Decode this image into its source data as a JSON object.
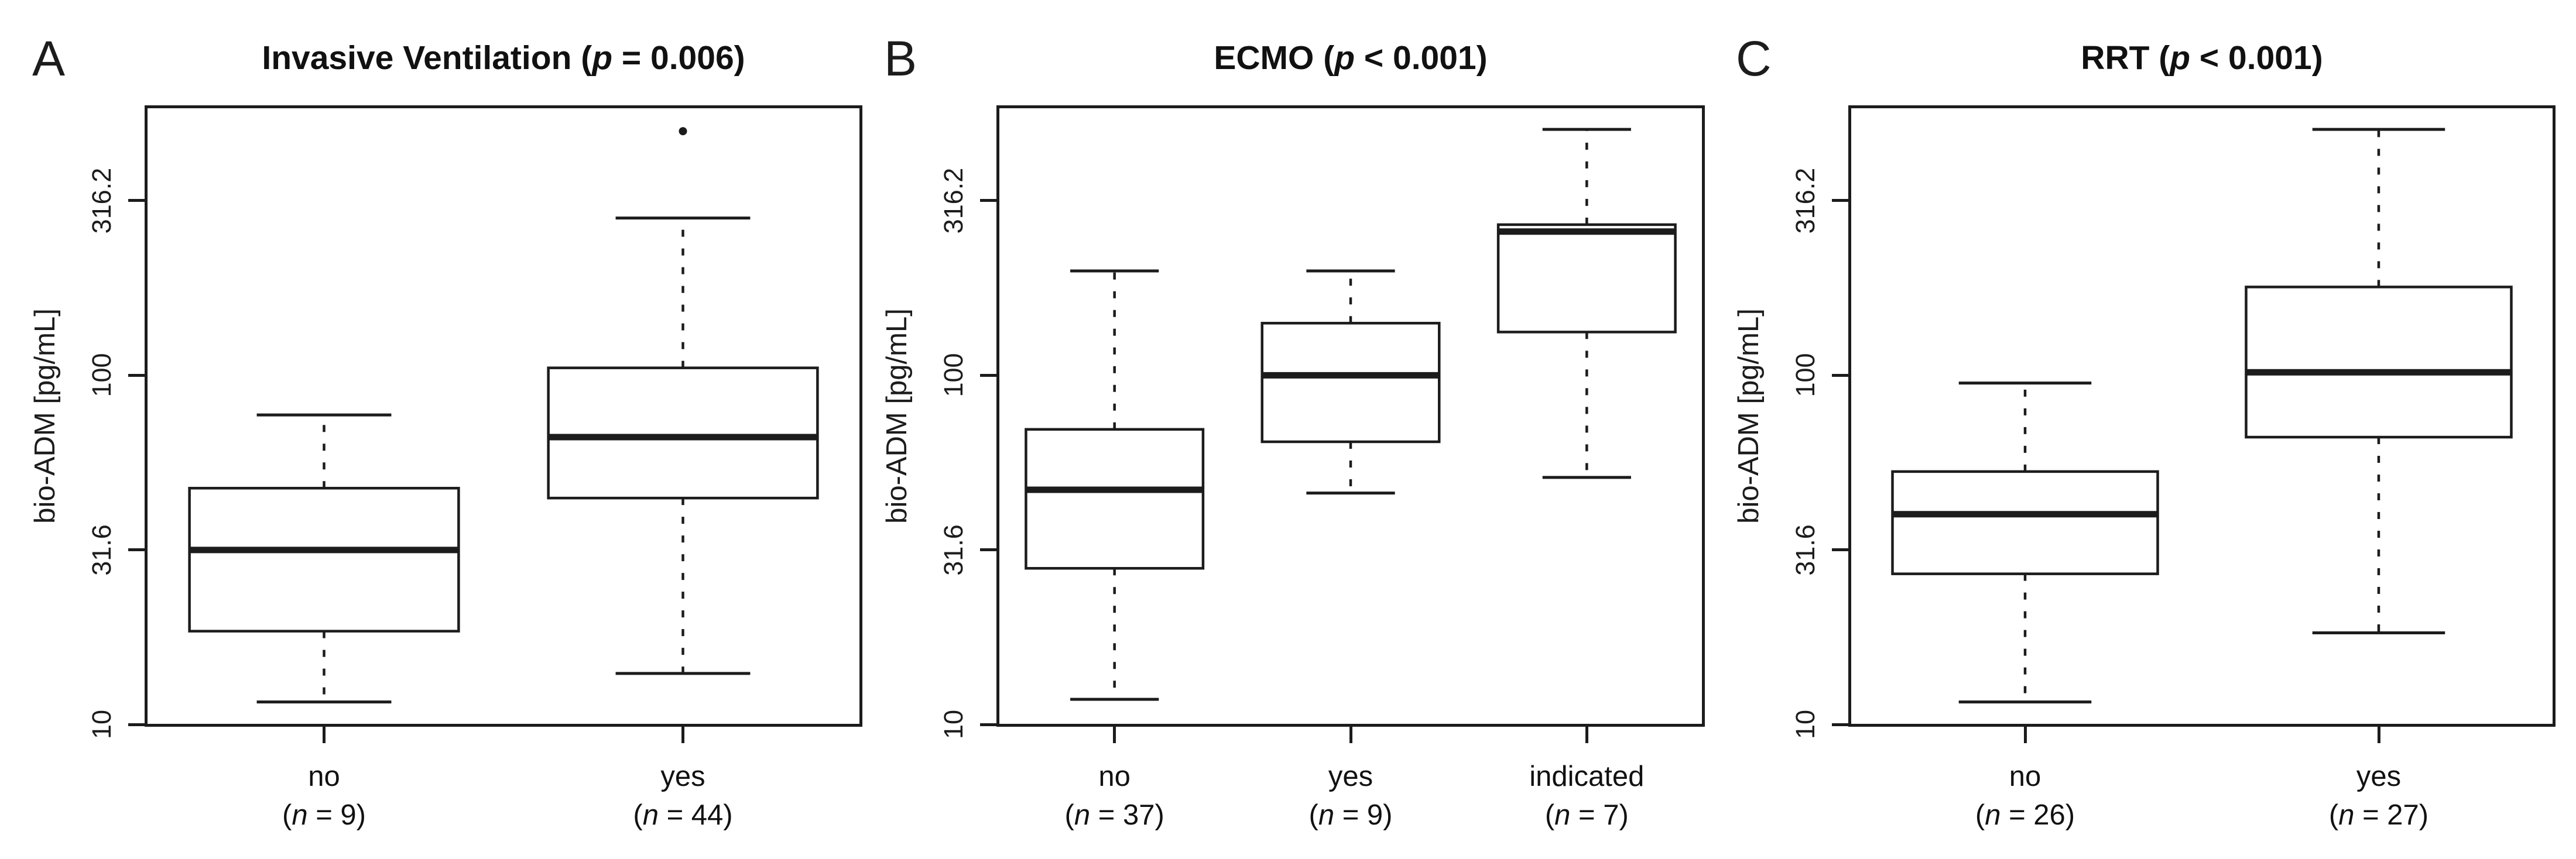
{
  "figure": {
    "background_color": "#ffffff",
    "line_color": "#1c1c1c",
    "ylabel": "bio-ADM [pg/mL]"
  },
  "chart_data": [
    {
      "type": "boxplot",
      "panel_letter": "A",
      "title": "Invasive Ventilation (p = 0.006)",
      "title_prefix": "Invasive Ventilation (",
      "title_p": "p",
      "title_suffix": " = 0.006)",
      "ylabel": "bio-ADM [pg/mL]",
      "y_scale": "log10",
      "ylim": [
        9.85,
        593
      ],
      "grid": false,
      "yticks": [
        {
          "value": 10,
          "label": "10"
        },
        {
          "value": 31.6,
          "label": "31.6"
        },
        {
          "value": 100,
          "label": "100"
        },
        {
          "value": 316.2,
          "label": "316.2"
        }
      ],
      "groups": [
        {
          "category": "no",
          "n": 9,
          "n_label": "(n = 9)",
          "whisker_low": 11.6,
          "q1": 18.5,
          "median": 31.6,
          "q3": 47.5,
          "whisker_high": 77,
          "outliers": []
        },
        {
          "category": "yes",
          "n": 44,
          "n_label": "(n = 44)",
          "whisker_low": 14,
          "q1": 44.5,
          "median": 66.5,
          "q3": 105,
          "whisker_high": 282,
          "outliers": [
            500
          ]
        }
      ]
    },
    {
      "type": "boxplot",
      "panel_letter": "B",
      "title": "ECMO (p < 0.001)",
      "title_prefix": "ECMO (",
      "title_p": "p",
      "title_suffix": " < 0.001)",
      "ylabel": "bio-ADM [pg/mL]",
      "y_scale": "log10",
      "ylim": [
        9.85,
        593
      ],
      "grid": false,
      "yticks": [
        {
          "value": 10,
          "label": "10"
        },
        {
          "value": 31.6,
          "label": "31.6"
        },
        {
          "value": 100,
          "label": "100"
        },
        {
          "value": 316.2,
          "label": "316.2"
        }
      ],
      "groups": [
        {
          "category": "no",
          "n": 37,
          "n_label": "(n = 37)",
          "whisker_low": 11.8,
          "q1": 28,
          "median": 47,
          "q3": 70,
          "whisker_high": 199,
          "outliers": []
        },
        {
          "category": "yes",
          "n": 9,
          "n_label": "(n = 9)",
          "whisker_low": 46,
          "q1": 64.5,
          "median": 100,
          "q3": 141,
          "whisker_high": 199,
          "outliers": []
        },
        {
          "category": "indicated",
          "n": 7,
          "n_label": "(n = 7)",
          "whisker_low": 51,
          "q1": 133,
          "median": 258,
          "q3": 270,
          "whisker_high": 506,
          "outliers": []
        }
      ]
    },
    {
      "type": "boxplot",
      "panel_letter": "C",
      "title": "RRT (p < 0.001)",
      "title_prefix": "RRT (",
      "title_p": "p",
      "title_suffix": " < 0.001)",
      "ylabel": "bio-ADM [pg/mL]",
      "y_scale": "log10",
      "ylim": [
        9.85,
        593
      ],
      "grid": false,
      "yticks": [
        {
          "value": 10,
          "label": "10"
        },
        {
          "value": 31.6,
          "label": "31.6"
        },
        {
          "value": 100,
          "label": "100"
        },
        {
          "value": 316.2,
          "label": "316.2"
        }
      ],
      "groups": [
        {
          "category": "no",
          "n": 26,
          "n_label": "(n = 26)",
          "whisker_low": 11.6,
          "q1": 27,
          "median": 40,
          "q3": 53,
          "whisker_high": 95,
          "outliers": []
        },
        {
          "category": "yes",
          "n": 27,
          "n_label": "(n = 27)",
          "whisker_low": 18.3,
          "q1": 66.5,
          "median": 102,
          "q3": 179,
          "whisker_high": 506,
          "outliers": []
        }
      ]
    }
  ]
}
